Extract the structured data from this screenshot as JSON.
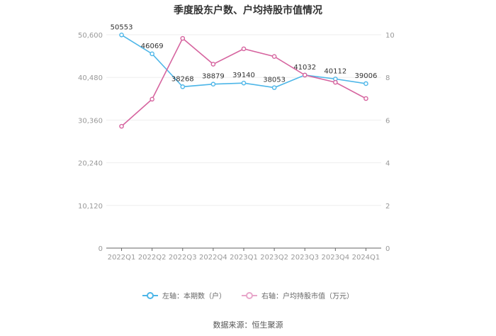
{
  "title": "季度股东户数、户均持股市值情况",
  "source": "数据来源：恒生聚源",
  "legend": [
    {
      "label": "左轴：本期数（户）",
      "color": "#4db6e8"
    },
    {
      "label": "右轴：户均持股市值（万元）",
      "color": "#d6649f"
    }
  ],
  "chart_data": {
    "type": "line",
    "title": "季度股东户数、户均持股市值情况",
    "categories": [
      "2022Q1",
      "2022Q2",
      "2022Q3",
      "2022Q4",
      "2023Q1",
      "2023Q2",
      "2023Q3",
      "2023Q4",
      "2024Q1"
    ],
    "series": [
      {
        "name": "左轴：本期数（户）",
        "axis": "left",
        "color": "#4db6e8",
        "values": [
          50553,
          46069,
          38268,
          38879,
          39140,
          38053,
          41032,
          40112,
          39006
        ],
        "data_labels": true
      },
      {
        "name": "右轴：户均持股市值（万元）",
        "axis": "right",
        "color": "#d6649f",
        "values": [
          5.71,
          6.98,
          9.83,
          8.62,
          9.34,
          8.98,
          8.11,
          7.77,
          7.01
        ],
        "data_labels": false
      }
    ],
    "left_axis": {
      "ticks": [
        "0",
        "10,120",
        "20,240",
        "30,360",
        "40,480",
        "50,600"
      ],
      "range": [
        0,
        50600
      ]
    },
    "right_axis": {
      "ticks": [
        "0",
        "2",
        "4",
        "6",
        "8",
        "10"
      ],
      "range": [
        0,
        10
      ]
    },
    "grid": true,
    "legend_position": "bottom"
  }
}
